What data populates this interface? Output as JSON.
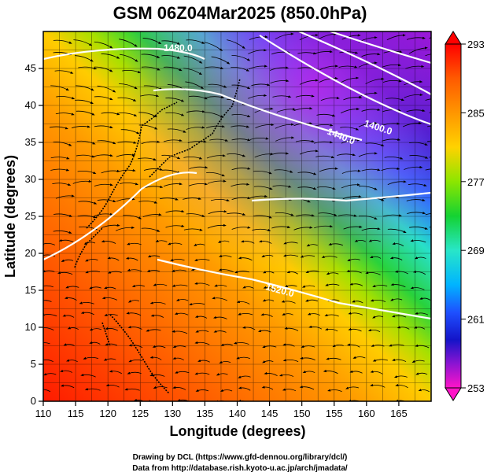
{
  "title": "GSM 06Z04Mar2025 (850.0hPa)",
  "xlabel": "Longitude (degrees)",
  "ylabel": "Latitude  (degrees)",
  "x_ticks": [
    "110",
    "115",
    "120",
    "125",
    "130",
    "135",
    "140",
    "145",
    "150",
    "155",
    "160",
    "165"
  ],
  "y_ticks": [
    "0",
    "5",
    "10",
    "15",
    "20",
    "25",
    "30",
    "35",
    "40",
    "45"
  ],
  "x_range": [
    110,
    170
  ],
  "y_range": [
    0,
    50
  ],
  "colorbar": {
    "labels": [
      "293",
      "285",
      "277",
      "269",
      "261",
      "253"
    ],
    "values": [
      293,
      285,
      277,
      269,
      261,
      253
    ],
    "range": [
      253,
      293
    ],
    "colors": [
      "#ff0000",
      "#ff8c00",
      "#ffd200",
      "#8ce600",
      "#14d232",
      "#28e6c8",
      "#00b4ff",
      "#1e50ff",
      "#1414c8",
      "#8c14d2",
      "#ff14c8"
    ]
  },
  "contours": [
    {
      "label": "1480.0"
    },
    {
      "label": "1440.0"
    },
    {
      "label": "1400.0"
    },
    {
      "label": "1520.0"
    }
  ],
  "credits": {
    "line1": "Drawing by DCL (https://www.gfd-dennou.org/library/dcl/)",
    "line2": "Data from http://database.rish.kyoto-u.ac.jp/arch/jmadata/"
  }
}
